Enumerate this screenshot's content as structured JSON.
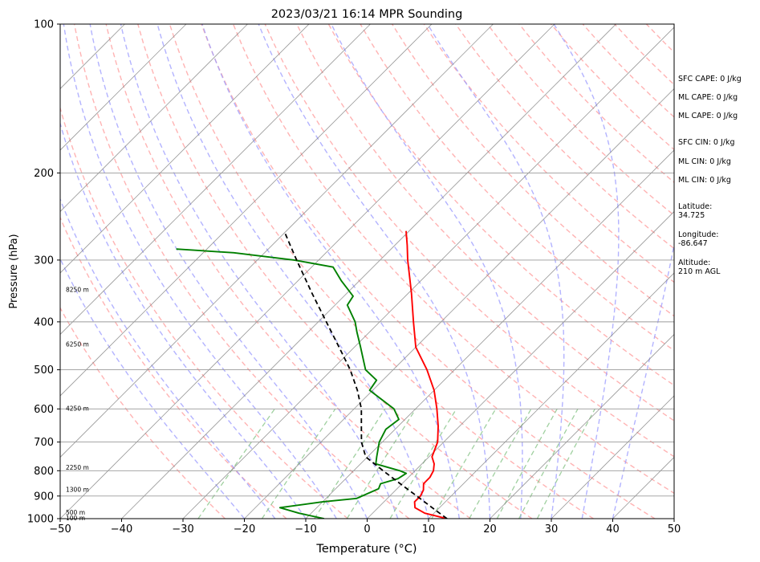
{
  "chart_data": {
    "type": "skew-t",
    "title": "2023/03/21 16:14 MPR Sounding",
    "xlabel": "Temperature (°C)",
    "ylabel": "Pressure (hPa)",
    "xlim": [
      -50,
      50
    ],
    "ylim": [
      1000,
      100
    ],
    "yscale": "log",
    "x_ticks": [
      "−50",
      "−40",
      "−30",
      "−20",
      "−10",
      "0",
      "10",
      "20",
      "30",
      "40",
      "50"
    ],
    "y_ticks": [
      "100",
      "200",
      "300",
      "400",
      "500",
      "600",
      "700",
      "800",
      "900",
      "1000"
    ],
    "grid": true,
    "skew_deg": 45,
    "series": [
      {
        "kind": "temperature",
        "color": "#ff0000",
        "points": [
          {
            "p": 1000,
            "t": 13.0
          },
          {
            "p": 975,
            "t": 8.5
          },
          {
            "p": 950,
            "t": 6.0
          },
          {
            "p": 925,
            "t": 5.0
          },
          {
            "p": 900,
            "t": 5.0
          },
          {
            "p": 875,
            "t": 4.5
          },
          {
            "p": 850,
            "t": 3.5
          },
          {
            "p": 825,
            "t": 3.5
          },
          {
            "p": 800,
            "t": 3.0
          },
          {
            "p": 775,
            "t": 2.0
          },
          {
            "p": 750,
            "t": 0.5
          },
          {
            "p": 700,
            "t": -1.0
          },
          {
            "p": 650,
            "t": -3.5
          },
          {
            "p": 600,
            "t": -6.5
          },
          {
            "p": 550,
            "t": -10.0
          },
          {
            "p": 500,
            "t": -14.5
          },
          {
            "p": 450,
            "t": -20.0
          },
          {
            "p": 400,
            "t": -24.5
          },
          {
            "p": 350,
            "t": -29.5
          },
          {
            "p": 300,
            "t": -35.5
          },
          {
            "p": 280,
            "t": -38.0
          },
          {
            "p": 262,
            "t": -40.5
          }
        ]
      },
      {
        "kind": "dewpoint",
        "color": "#008000",
        "points": [
          {
            "p": 1000,
            "t": -7.0
          },
          {
            "p": 975,
            "t": -12.0
          },
          {
            "p": 950,
            "t": -16.0
          },
          {
            "p": 925,
            "t": -10.0
          },
          {
            "p": 910,
            "t": -5.0
          },
          {
            "p": 890,
            "t": -4.0
          },
          {
            "p": 870,
            "t": -3.0
          },
          {
            "p": 850,
            "t": -3.5
          },
          {
            "p": 830,
            "t": -1.5
          },
          {
            "p": 810,
            "t": -1.0
          },
          {
            "p": 800,
            "t": -2.5
          },
          {
            "p": 775,
            "t": -7.5
          },
          {
            "p": 750,
            "t": -8.5
          },
          {
            "p": 700,
            "t": -10.5
          },
          {
            "p": 660,
            "t": -11.5
          },
          {
            "p": 630,
            "t": -11.0
          },
          {
            "p": 600,
            "t": -13.5
          },
          {
            "p": 550,
            "t": -20.5
          },
          {
            "p": 525,
            "t": -21.0
          },
          {
            "p": 500,
            "t": -24.5
          },
          {
            "p": 450,
            "t": -29.0
          },
          {
            "p": 420,
            "t": -32.0
          },
          {
            "p": 400,
            "t": -34.0
          },
          {
            "p": 370,
            "t": -38.0
          },
          {
            "p": 355,
            "t": -38.5
          },
          {
            "p": 330,
            "t": -43.0
          },
          {
            "p": 310,
            "t": -46.5
          },
          {
            "p": 300,
            "t": -54.0
          },
          {
            "p": 290,
            "t": -65.0
          },
          {
            "p": 285,
            "t": -75.0
          }
        ]
      },
      {
        "kind": "parcel",
        "color": "#000000",
        "dashed": true,
        "points": [
          {
            "p": 1000,
            "t": 13.0
          },
          {
            "p": 950,
            "t": 8.8
          },
          {
            "p": 900,
            "t": 4.4
          },
          {
            "p": 850,
            "t": -0.3
          },
          {
            "p": 800,
            "t": -5.2
          },
          {
            "p": 750,
            "t": -10.3
          },
          {
            "p": 700,
            "t": -13.4
          },
          {
            "p": 650,
            "t": -16.0
          },
          {
            "p": 600,
            "t": -18.8
          },
          {
            "p": 550,
            "t": -22.5
          },
          {
            "p": 500,
            "t": -27.0
          },
          {
            "p": 450,
            "t": -32.5
          },
          {
            "p": 400,
            "t": -38.7
          },
          {
            "p": 350,
            "t": -45.7
          },
          {
            "p": 300,
            "t": -53.6
          },
          {
            "p": 265,
            "t": -59.8
          }
        ]
      }
    ],
    "reference_lines": {
      "isotherms": {
        "color": "#808080",
        "step": 10
      },
      "dry_adiabats": {
        "color": "#ff9999",
        "dashed": true
      },
      "moist_adiabats": {
        "color": "#9999ff",
        "dashed": true
      },
      "mixing_ratio": {
        "color": "#88c488",
        "dashed": true
      }
    },
    "height_labels": [
      {
        "p": 1000,
        "text": "100 m"
      },
      {
        "p": 975,
        "text": "500 m"
      },
      {
        "p": 875,
        "text": "1300 m"
      },
      {
        "p": 790,
        "text": "2250 m"
      },
      {
        "p": 600,
        "text": "4250 m"
      },
      {
        "p": 445,
        "text": "6250 m"
      },
      {
        "p": 345,
        "text": "8250 m"
      }
    ]
  },
  "side_info": {
    "sfc_cape": "SFC CAPE: 0 J/kg",
    "ml_cape_1": "ML CAPE: 0 J/kg",
    "ml_cape_2": "ML CAPE: 0 J/kg",
    "sfc_cin": "SFC CIN: 0 J/kg",
    "ml_cin_1": "ML CIN: 0 J/kg",
    "ml_cin_2": "ML CIN: 0 J/kg",
    "latitude_label": "Latitude:",
    "latitude_value": "34.725",
    "longitude_label": "Longitude:",
    "longitude_value": "-86.647",
    "altitude_label": "Altitude:",
    "altitude_value": "210 m AGL"
  }
}
